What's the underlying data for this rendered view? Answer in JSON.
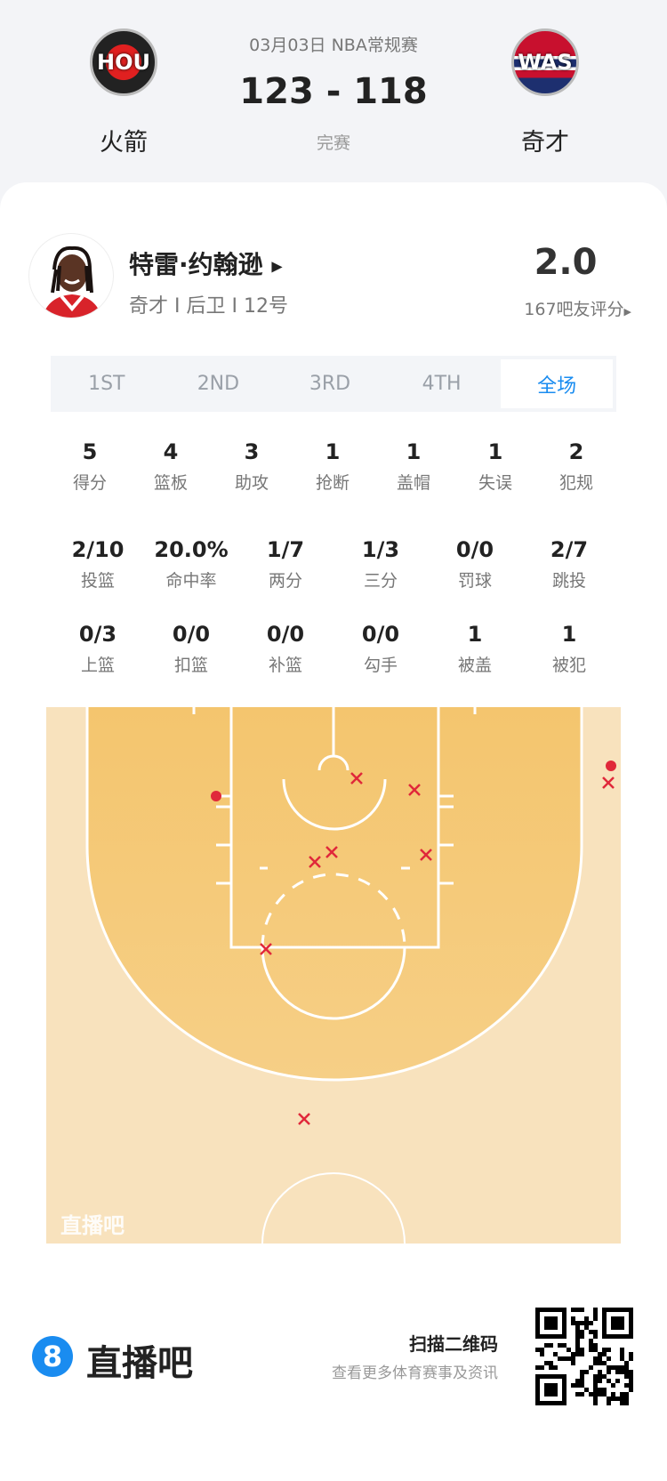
{
  "header": {
    "date_league": "03月03日 NBA常规赛",
    "score": "123 - 118",
    "status": "完赛",
    "home": {
      "abbr": "HOU",
      "name": "火箭"
    },
    "away": {
      "abbr": "WAS",
      "name": "奇才"
    }
  },
  "player": {
    "name": "特雷·约翰逊",
    "info": "奇才 I 后卫 I 12号",
    "rating": "2.0",
    "rating_count": "167吧友评分"
  },
  "tabs": [
    {
      "label": "1ST"
    },
    {
      "label": "2ND"
    },
    {
      "label": "3RD"
    },
    {
      "label": "4TH"
    },
    {
      "label": "全场",
      "active": true
    }
  ],
  "stats_row1": [
    {
      "v": "5",
      "l": "得分"
    },
    {
      "v": "4",
      "l": "篮板"
    },
    {
      "v": "3",
      "l": "助攻"
    },
    {
      "v": "1",
      "l": "抢断"
    },
    {
      "v": "1",
      "l": "盖帽"
    },
    {
      "v": "1",
      "l": "失误"
    },
    {
      "v": "2",
      "l": "犯规"
    }
  ],
  "stats_row2": [
    {
      "v": "2/10",
      "l": "投篮"
    },
    {
      "v": "20.0%",
      "l": "命中率"
    },
    {
      "v": "1/7",
      "l": "两分"
    },
    {
      "v": "1/3",
      "l": "三分"
    },
    {
      "v": "0/0",
      "l": "罚球"
    },
    {
      "v": "2/7",
      "l": "跳投"
    }
  ],
  "stats_row3": [
    {
      "v": "0/3",
      "l": "上篮"
    },
    {
      "v": "0/0",
      "l": "扣篮"
    },
    {
      "v": "0/0",
      "l": "补篮"
    },
    {
      "v": "0/0",
      "l": "勾手"
    },
    {
      "v": "1",
      "l": "被盖"
    },
    {
      "v": "1",
      "l": "被犯"
    }
  ],
  "shot_chart": {
    "watermark": "直播吧",
    "made_color": "#e0283a",
    "miss_color": "#e0283a",
    "shots": [
      "made",
      "made",
      "miss",
      "miss",
      "miss",
      "miss",
      "miss",
      "miss",
      "miss",
      "miss"
    ]
  },
  "footer": {
    "brand": "直播吧",
    "brand_number": "8",
    "scan": "扫描二维码",
    "more": "查看更多体育赛事及资讯"
  },
  "colors": {
    "accent": "#1a8cf0",
    "court_inner": "#f4c56e",
    "court_outer": "#f8e2bd"
  }
}
